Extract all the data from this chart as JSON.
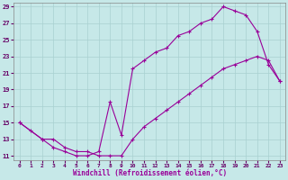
{
  "xlabel": "Windchill (Refroidissement éolien,°C)",
  "ylabel": "",
  "bg_color": "#c6e8e8",
  "grid_color": "#a8d0d0",
  "line_color": "#990099",
  "xlim": [
    -0.5,
    23.5
  ],
  "ylim": [
    10.5,
    29.5
  ],
  "xticks": [
    0,
    1,
    2,
    3,
    4,
    5,
    6,
    7,
    8,
    9,
    10,
    11,
    12,
    13,
    14,
    15,
    16,
    17,
    18,
    19,
    20,
    21,
    22,
    23
  ],
  "yticks": [
    11,
    13,
    15,
    17,
    19,
    21,
    23,
    25,
    27,
    29
  ],
  "line1_x": [
    0,
    1,
    2,
    3,
    4,
    5,
    6,
    7,
    8,
    9,
    10,
    11,
    12,
    13,
    14,
    15,
    16,
    17,
    18,
    19,
    20,
    21,
    22,
    23
  ],
  "line1_y": [
    15,
    14,
    13,
    12,
    11.5,
    11,
    11,
    11.5,
    17.5,
    13.5,
    21.5,
    22.5,
    23.5,
    24,
    25.5,
    26,
    27,
    27.5,
    29,
    28.5,
    28,
    26,
    22,
    20
  ],
  "line2_x": [
    0,
    2,
    3,
    4,
    5,
    6,
    7,
    8,
    9,
    10,
    11,
    12,
    13,
    14,
    15,
    16,
    17,
    18,
    19,
    20,
    21,
    22,
    23
  ],
  "line2_y": [
    15,
    13,
    13,
    12,
    11.5,
    11.5,
    11,
    11,
    11,
    13,
    14.5,
    15.5,
    16.5,
    17.5,
    18.5,
    19.5,
    20.5,
    21.5,
    22,
    22.5,
    23,
    22.5,
    20
  ]
}
